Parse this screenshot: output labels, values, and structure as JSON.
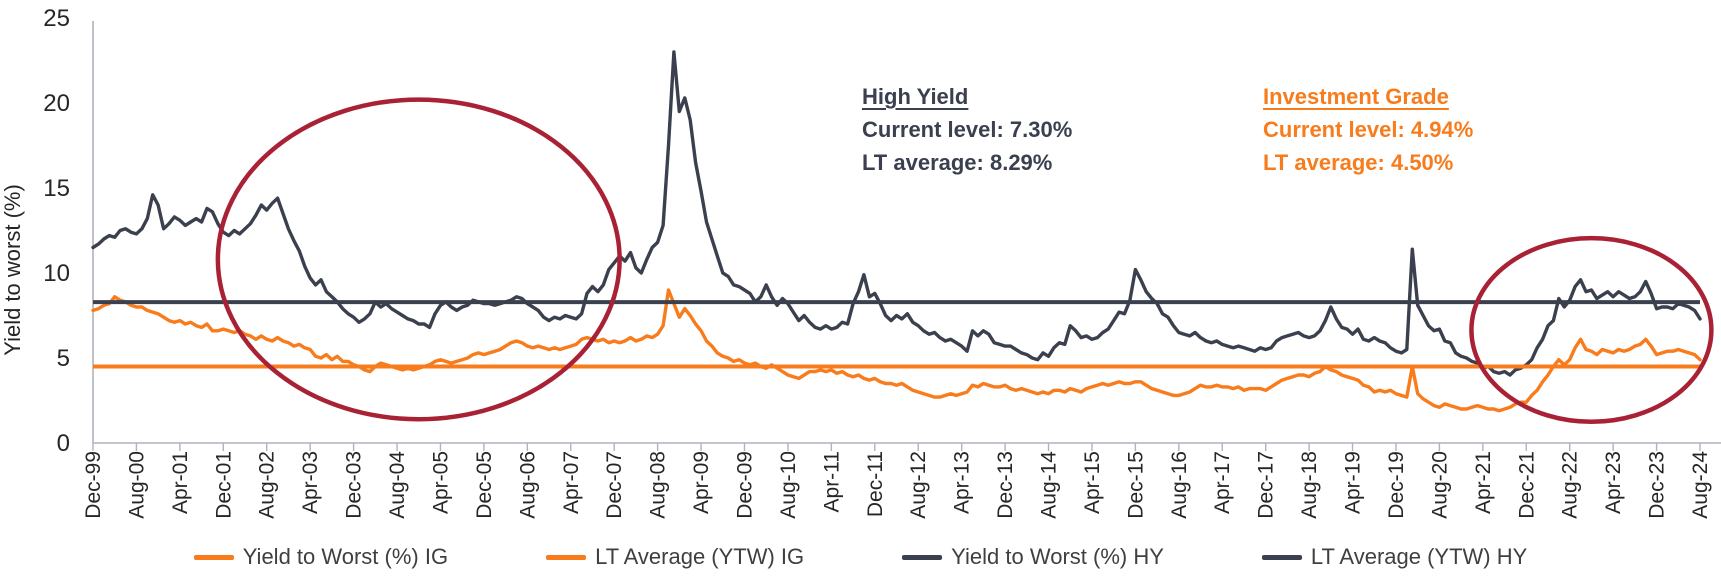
{
  "chart_data": {
    "type": "line",
    "title": "",
    "ylabel": "Yield to worst (%)",
    "ylim": [
      0,
      25
    ],
    "yticks": [
      0,
      5,
      10,
      15,
      20,
      25
    ],
    "grid": false,
    "x_start": "Dec-99",
    "x_end": "Aug-24",
    "x_tick_interval_months": 8,
    "x_tick_labels": [
      "Dec-99",
      "Aug-00",
      "Apr-01",
      "Dec-01",
      "Aug-02",
      "Apr-03",
      "Dec-03",
      "Aug-04",
      "Apr-05",
      "Dec-05",
      "Aug-06",
      "Apr-07",
      "Dec-07",
      "Aug-08",
      "Apr-09",
      "Dec-09",
      "Aug-10",
      "Apr-11",
      "Dec-11",
      "Aug-12",
      "Apr-13",
      "Dec-13",
      "Aug-14",
      "Apr-15",
      "Dec-15",
      "Aug-16",
      "Apr-17",
      "Dec-17",
      "Aug-18",
      "Apr-19",
      "Dec-19",
      "Aug-20",
      "Apr-21",
      "Dec-21",
      "Aug-22",
      "Apr-23",
      "Dec-23",
      "Aug-24"
    ],
    "axis_color": "#AFB3BE",
    "text_color": "#262626",
    "series": [
      {
        "name": "Yield to Worst (%) IG",
        "kind": "line",
        "color": "#F87B1C",
        "values": [
          7.8,
          7.9,
          8.1,
          8.2,
          8.6,
          8.4,
          8.3,
          8.1,
          8.0,
          8.0,
          7.8,
          7.7,
          7.6,
          7.4,
          7.2,
          7.1,
          7.2,
          7.0,
          7.1,
          6.9,
          6.8,
          7.0,
          6.6,
          6.6,
          6.7,
          6.6,
          6.5,
          6.6,
          6.4,
          6.3,
          6.1,
          6.3,
          6.1,
          6.0,
          6.2,
          6.0,
          5.9,
          5.7,
          5.8,
          5.6,
          5.5,
          5.1,
          5.0,
          5.2,
          4.9,
          5.1,
          4.8,
          4.8,
          4.6,
          4.5,
          4.3,
          4.2,
          4.5,
          4.7,
          4.6,
          4.5,
          4.4,
          4.3,
          4.4,
          4.3,
          4.4,
          4.5,
          4.6,
          4.8,
          4.9,
          4.8,
          4.7,
          4.8,
          4.9,
          5.0,
          5.2,
          5.3,
          5.2,
          5.3,
          5.4,
          5.5,
          5.7,
          5.9,
          6.0,
          5.9,
          5.7,
          5.6,
          5.7,
          5.6,
          5.5,
          5.6,
          5.5,
          5.6,
          5.7,
          5.8,
          6.1,
          6.2,
          6.1,
          6.0,
          6.1,
          5.9,
          6.0,
          5.9,
          6.0,
          6.2,
          6.0,
          6.1,
          6.3,
          6.2,
          6.4,
          6.9,
          9.0,
          8.2,
          7.4,
          7.9,
          7.5,
          7.0,
          6.6,
          6.0,
          5.7,
          5.3,
          5.1,
          5.0,
          4.8,
          4.9,
          4.7,
          4.6,
          4.7,
          4.5,
          4.4,
          4.6,
          4.4,
          4.2,
          4.0,
          3.9,
          3.8,
          4.0,
          4.2,
          4.2,
          4.3,
          4.2,
          4.3,
          4.1,
          4.2,
          4.0,
          3.9,
          4.0,
          3.8,
          3.7,
          3.8,
          3.6,
          3.5,
          3.5,
          3.4,
          3.5,
          3.3,
          3.1,
          3.0,
          2.9,
          2.8,
          2.7,
          2.7,
          2.8,
          2.9,
          2.8,
          2.9,
          3.0,
          3.4,
          3.3,
          3.5,
          3.4,
          3.3,
          3.3,
          3.4,
          3.2,
          3.1,
          3.2,
          3.1,
          3.0,
          2.9,
          3.0,
          2.9,
          3.1,
          3.1,
          3.0,
          3.2,
          3.1,
          3.0,
          3.2,
          3.3,
          3.4,
          3.5,
          3.4,
          3.5,
          3.6,
          3.5,
          3.5,
          3.6,
          3.6,
          3.4,
          3.2,
          3.1,
          3.0,
          2.9,
          2.8,
          2.8,
          2.9,
          3.0,
          3.2,
          3.4,
          3.3,
          3.3,
          3.4,
          3.3,
          3.3,
          3.2,
          3.3,
          3.1,
          3.2,
          3.2,
          3.2,
          3.1,
          3.3,
          3.5,
          3.7,
          3.8,
          3.9,
          4.0,
          4.0,
          3.9,
          4.1,
          4.2,
          4.5,
          4.3,
          4.2,
          4.0,
          3.9,
          3.8,
          3.7,
          3.4,
          3.3,
          3.0,
          3.1,
          3.0,
          3.1,
          2.9,
          2.8,
          2.7,
          4.5,
          2.9,
          2.6,
          2.4,
          2.2,
          2.1,
          2.3,
          2.2,
          2.1,
          2.0,
          2.0,
          2.1,
          2.2,
          2.1,
          2.0,
          2.0,
          1.9,
          2.0,
          2.1,
          2.3,
          2.4,
          2.4,
          2.8,
          3.1,
          3.6,
          4.0,
          4.5,
          4.9,
          4.6,
          4.9,
          5.6,
          6.1,
          5.5,
          5.4,
          5.2,
          5.5,
          5.4,
          5.3,
          5.5,
          5.4,
          5.5,
          5.7,
          5.8,
          6.1,
          5.7,
          5.2,
          5.3,
          5.4,
          5.4,
          5.5,
          5.4,
          5.3,
          5.2,
          4.9
        ]
      },
      {
        "name": "LT Average (YTW) IG",
        "kind": "hline",
        "color": "#F87B1C",
        "value": 4.5
      },
      {
        "name": "Yield to Worst (%) HY",
        "kind": "line",
        "color": "#3A404E",
        "values": [
          11.5,
          11.7,
          12.0,
          12.2,
          12.1,
          12.5,
          12.6,
          12.4,
          12.3,
          12.6,
          13.2,
          14.6,
          14.0,
          12.6,
          12.9,
          13.3,
          13.1,
          12.8,
          13.0,
          13.2,
          13.0,
          13.8,
          13.6,
          12.9,
          12.4,
          12.2,
          12.5,
          12.3,
          12.6,
          12.9,
          13.4,
          14.0,
          13.7,
          14.1,
          14.4,
          13.5,
          12.6,
          11.9,
          11.3,
          10.4,
          9.7,
          9.3,
          9.6,
          8.9,
          8.6,
          8.3,
          7.9,
          7.6,
          7.4,
          7.1,
          7.3,
          7.6,
          8.3,
          8.0,
          8.2,
          7.9,
          7.7,
          7.5,
          7.3,
          7.2,
          7.0,
          7.0,
          6.8,
          7.6,
          8.1,
          8.3,
          8.0,
          7.8,
          8.0,
          8.1,
          8.4,
          8.3,
          8.2,
          8.2,
          8.1,
          8.2,
          8.3,
          8.4,
          8.6,
          8.5,
          8.2,
          8.0,
          7.8,
          7.4,
          7.2,
          7.4,
          7.3,
          7.5,
          7.4,
          7.3,
          7.6,
          8.8,
          9.2,
          8.9,
          9.3,
          10.2,
          10.6,
          11.0,
          10.7,
          11.2,
          10.3,
          10.0,
          10.8,
          11.5,
          11.8,
          12.8,
          17.5,
          23.0,
          19.5,
          20.3,
          19.0,
          16.5,
          14.8,
          13.0,
          12.0,
          11.0,
          10.0,
          9.8,
          9.3,
          9.2,
          9.0,
          8.8,
          8.3,
          8.6,
          9.3,
          8.6,
          8.1,
          8.5,
          8.2,
          7.7,
          7.2,
          7.5,
          7.1,
          6.8,
          6.7,
          6.9,
          6.7,
          6.8,
          7.1,
          7.0,
          8.2,
          8.9,
          9.9,
          8.6,
          8.8,
          8.2,
          7.5,
          7.2,
          7.5,
          7.3,
          7.6,
          7.1,
          6.9,
          6.6,
          6.4,
          6.5,
          6.2,
          6.0,
          6.1,
          5.9,
          5.7,
          5.4,
          6.6,
          6.3,
          6.6,
          6.4,
          5.9,
          5.8,
          5.7,
          5.7,
          5.5,
          5.3,
          5.2,
          5.0,
          4.9,
          5.3,
          5.1,
          5.6,
          5.9,
          5.8,
          6.9,
          6.6,
          6.2,
          6.3,
          6.1,
          6.2,
          6.5,
          6.7,
          7.2,
          7.7,
          7.6,
          8.4,
          10.2,
          9.6,
          8.9,
          8.5,
          8.2,
          7.6,
          7.4,
          6.9,
          6.5,
          6.4,
          6.3,
          6.5,
          6.2,
          6.0,
          5.9,
          6.0,
          5.8,
          5.7,
          5.6,
          5.7,
          5.6,
          5.5,
          5.4,
          5.6,
          5.5,
          5.6,
          6.0,
          6.2,
          6.3,
          6.4,
          6.5,
          6.3,
          6.2,
          6.3,
          6.6,
          7.2,
          8.0,
          7.3,
          6.8,
          6.7,
          6.4,
          6.7,
          6.1,
          6.0,
          6.2,
          6.0,
          5.9,
          5.6,
          5.4,
          5.3,
          5.5,
          11.4,
          8.1,
          7.5,
          6.9,
          6.6,
          6.7,
          6.0,
          5.9,
          5.3,
          5.1,
          5.0,
          4.8,
          4.7,
          4.4,
          4.5,
          4.2,
          4.1,
          4.2,
          4.0,
          4.3,
          4.4,
          4.6,
          4.9,
          5.6,
          6.1,
          6.9,
          7.2,
          8.5,
          8.0,
          8.4,
          9.2,
          9.6,
          8.9,
          9.0,
          8.5,
          8.7,
          8.9,
          8.6,
          8.9,
          8.7,
          8.5,
          8.6,
          8.9,
          9.5,
          8.8,
          7.9,
          8.0,
          8.0,
          7.9,
          8.2,
          8.1,
          8.0,
          7.8,
          7.3
        ]
      },
      {
        "name": "LT Average (YTW) HY",
        "kind": "hline",
        "color": "#3A404E",
        "value": 8.29
      }
    ],
    "highlight_ellipses": [
      {
        "label": "low-yield period 2002-2007",
        "color": "#A92135",
        "center_month": 60,
        "center_value": 10.8,
        "radius_months": 37.0,
        "radius_value": 9.4
      },
      {
        "label": "recent period 2022-2024",
        "color": "#A92135",
        "center_month": 276,
        "center_value": 6.65,
        "radius_months": 22.1,
        "radius_value": 5.4
      }
    ]
  },
  "callouts": {
    "high_yield": {
      "title": "High Yield",
      "current": "Current level: 7.30%",
      "lt_average": "LT average: 8.29%",
      "color": "#3A404E"
    },
    "investment_grade": {
      "title": "Investment Grade",
      "current": "Current level: 4.94%",
      "lt_average": "LT average: 4.50%",
      "color": "#F87B1C"
    }
  },
  "legend": {
    "items": [
      {
        "label": "Yield to Worst (%) IG",
        "color": "#F87B1C"
      },
      {
        "label": "LT Average (YTW) IG",
        "color": "#F87B1C"
      },
      {
        "label": "Yield to Worst (%) HY",
        "color": "#3A404E"
      },
      {
        "label": "LT Average (YTW) HY",
        "color": "#3A404E"
      }
    ]
  }
}
